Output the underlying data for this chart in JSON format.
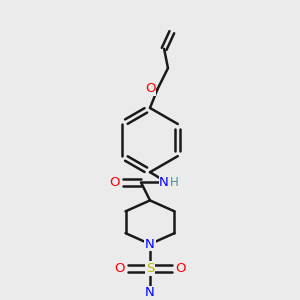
{
  "bg_color": "#ebebeb",
  "bond_color": "#1a1a1a",
  "bond_width": 1.8,
  "atom_colors": {
    "O": "#ff0000",
    "N": "#0000ff",
    "NH": "#4a9090",
    "H": "#4a9090",
    "S": "#b8b800",
    "C": "#1a1a1a"
  },
  "font_size": 8.5,
  "fig_size": [
    3.0,
    3.0
  ],
  "dpi": 100
}
